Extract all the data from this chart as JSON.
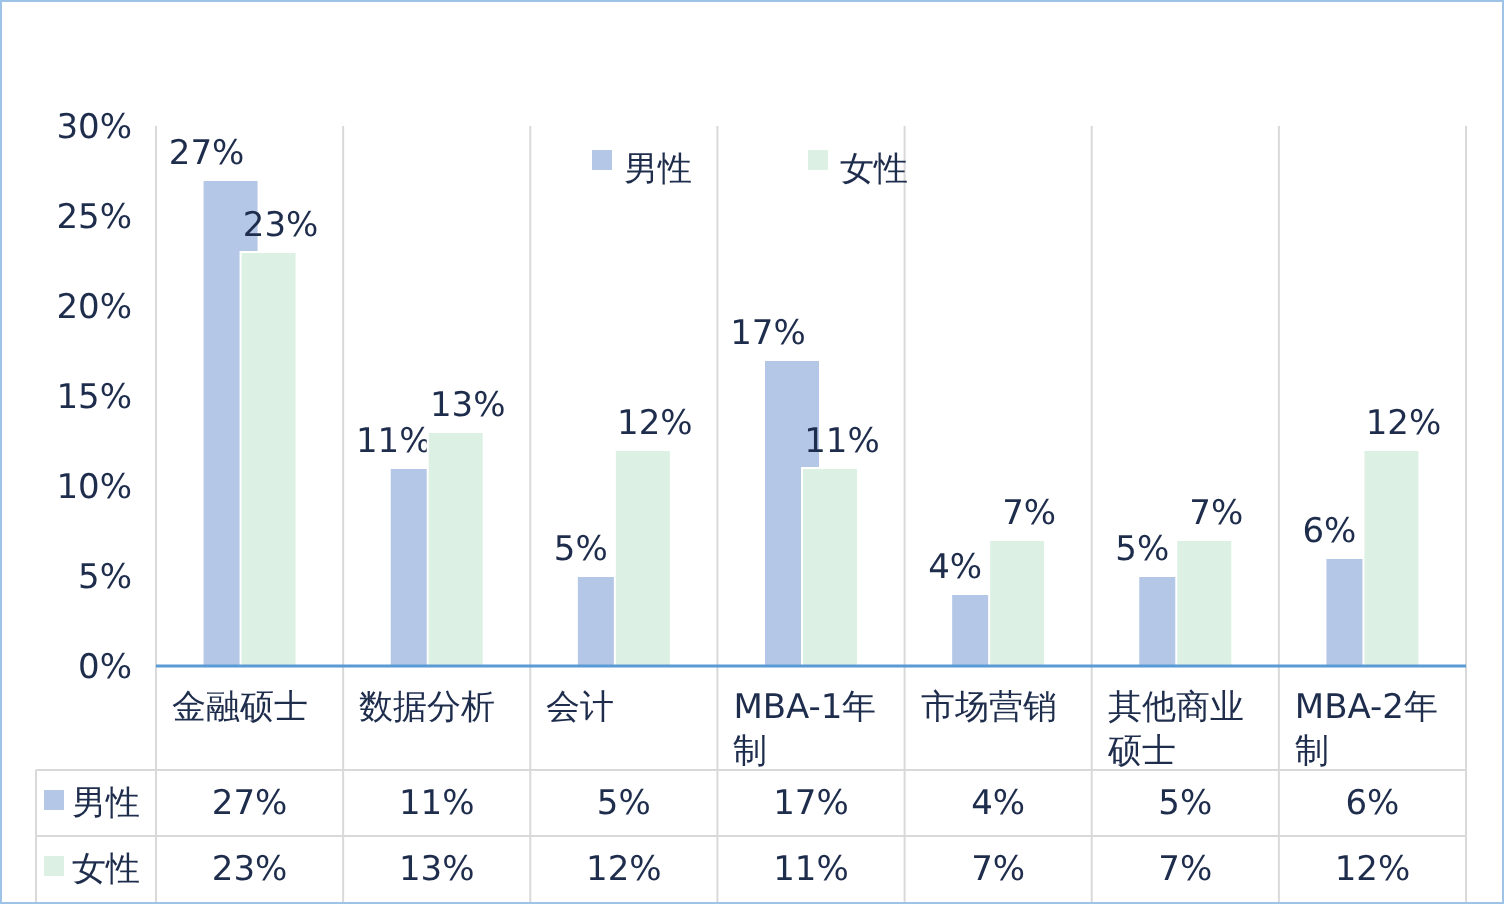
{
  "chart_data": {
    "type": "bar",
    "categories": [
      "金融硕士",
      "数据分析",
      "会计",
      "MBA-1年制",
      "市场营销",
      "其他商业硕士",
      "MBA-2年制"
    ],
    "series": [
      {
        "name": "男性",
        "color": "#b4c7e7",
        "values": [
          27,
          11,
          5,
          17,
          4,
          5,
          6
        ],
        "value_labels": [
          "27%",
          "11%",
          "5%",
          "17%",
          "4%",
          "5%",
          "6%"
        ]
      },
      {
        "name": "女性",
        "color": "#dcf1e4",
        "values": [
          23,
          13,
          12,
          11,
          7,
          7,
          12
        ],
        "value_labels": [
          "23%",
          "13%",
          "12%",
          "11%",
          "7%",
          "7%",
          "12%"
        ]
      }
    ],
    "ylim": [
      0,
      30
    ],
    "yticks": [
      {
        "value": 0,
        "label": "0%"
      },
      {
        "value": 5,
        "label": "5%"
      },
      {
        "value": 10,
        "label": "10%"
      },
      {
        "value": 15,
        "label": "15%"
      },
      {
        "value": 20,
        "label": "20%"
      },
      {
        "value": 25,
        "label": "25%"
      },
      {
        "value": 30,
        "label": "30%"
      }
    ],
    "grid": "x",
    "legend": "top"
  }
}
